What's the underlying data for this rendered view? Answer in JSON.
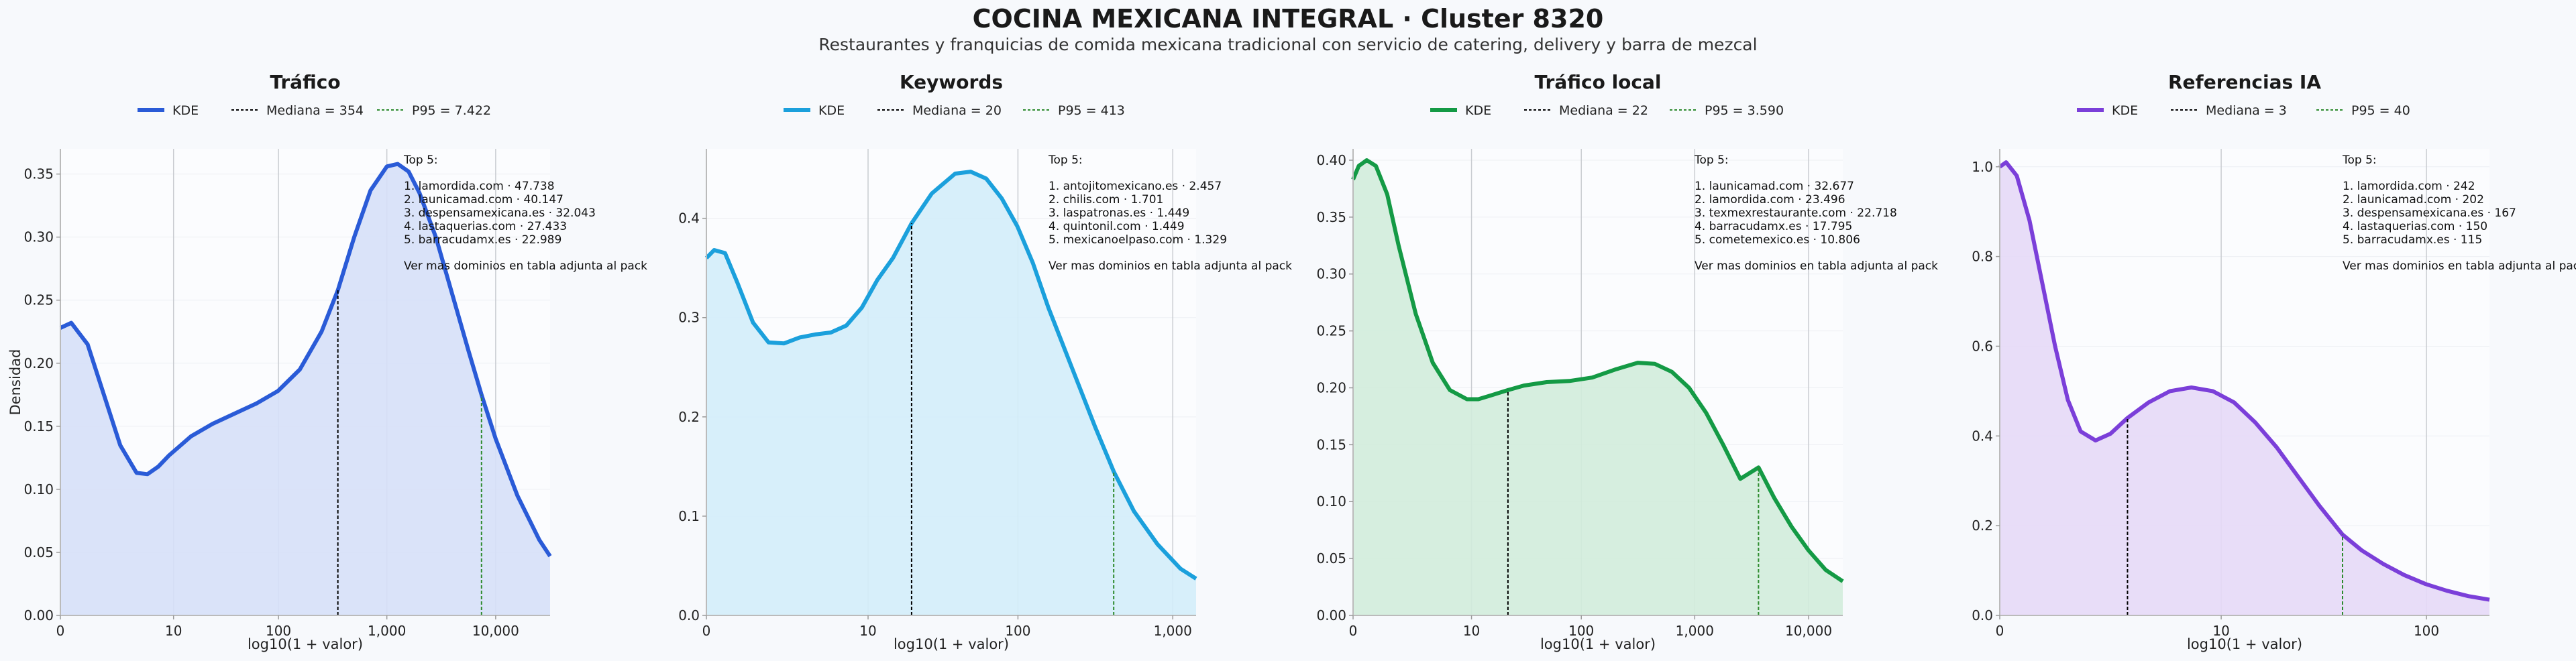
{
  "header": {
    "title": "COCINA MEXICANA INTEGRAL · Cluster 8320",
    "subtitle": "Restaurantes y franquicias de comida mexicana tradicional con servicio de catering, delivery y barra de mezcal"
  },
  "common": {
    "xlabel": "log10(1 + valor)",
    "ylabel": "Densidad",
    "legend_kde": "KDE",
    "note_header": "Top 5:",
    "note_footer": "Ver mas dominios en tabla adjunta al pack",
    "median_color": "#000000",
    "p95_color": "#2e8b2e"
  },
  "chart_data": [
    {
      "type": "area",
      "title": "Tráfico",
      "color": "#2a5bd7",
      "fill": "#d6e0f8",
      "xlim": [
        0,
        4.5
      ],
      "ylim": [
        0,
        0.37
      ],
      "yticks": [
        0,
        0.05,
        0.1,
        0.15,
        0.2,
        0.25,
        0.3,
        0.35
      ],
      "ytick_labels": [
        "0.00",
        "0.05",
        "0.10",
        "0.15",
        "0.20",
        "0.25",
        "0.30",
        "0.35"
      ],
      "xticks": [
        0,
        1.04,
        2.004,
        3.0,
        4.0
      ],
      "xtick_labels": [
        "0",
        "10",
        "100",
        "1,000",
        "10,000"
      ],
      "median": {
        "label": "Mediana = 354",
        "x": 2.55
      },
      "p95": {
        "label": "P95 = 7.422",
        "x": 3.87
      },
      "top5": [
        "1. lamordida.com · 47.738",
        "2. launicamad.com · 40.147",
        "3. despensamexicana.es · 32.043",
        "4. lastaquerias.com · 27.433",
        "5. barracudamx.es · 22.989"
      ],
      "x": [
        0,
        0.1,
        0.25,
        0.4,
        0.55,
        0.7,
        0.8,
        0.9,
        1.0,
        1.2,
        1.4,
        1.6,
        1.8,
        2.0,
        2.2,
        2.4,
        2.55,
        2.7,
        2.85,
        3.0,
        3.1,
        3.2,
        3.3,
        3.45,
        3.6,
        3.75,
        3.87,
        4.0,
        4.2,
        4.4,
        4.5
      ],
      "y": [
        0.228,
        0.232,
        0.215,
        0.175,
        0.135,
        0.113,
        0.112,
        0.118,
        0.127,
        0.142,
        0.152,
        0.16,
        0.168,
        0.178,
        0.195,
        0.225,
        0.258,
        0.3,
        0.337,
        0.356,
        0.358,
        0.352,
        0.335,
        0.3,
        0.255,
        0.21,
        0.175,
        0.14,
        0.095,
        0.06,
        0.047
      ]
    },
    {
      "type": "area",
      "title": "Keywords",
      "color": "#1ba0dc",
      "fill": "#d3edf9",
      "xlim": [
        0,
        3.15
      ],
      "ylim": [
        0,
        0.47
      ],
      "yticks": [
        0,
        0.1,
        0.2,
        0.3,
        0.4
      ],
      "ytick_labels": [
        "0.0",
        "0.1",
        "0.2",
        "0.3",
        "0.4"
      ],
      "xticks": [
        0,
        1.04,
        2.004,
        3.0
      ],
      "xtick_labels": [
        "0",
        "10",
        "100",
        "1,000"
      ],
      "median": {
        "label": "Mediana = 20",
        "x": 1.32
      },
      "p95": {
        "label": "P95 = 413",
        "x": 2.62
      },
      "top5": [
        "1. antojitomexicano.es · 2.457",
        "2. chilis.com · 1.701",
        "3. laspatronas.es · 1.449",
        "4. quintonil.com · 1.449",
        "5. mexicanoelpaso.com · 1.329"
      ],
      "x": [
        0,
        0.05,
        0.12,
        0.2,
        0.3,
        0.4,
        0.5,
        0.6,
        0.7,
        0.8,
        0.9,
        1.0,
        1.1,
        1.2,
        1.32,
        1.45,
        1.6,
        1.7,
        1.8,
        1.9,
        2.0,
        2.1,
        2.2,
        2.35,
        2.5,
        2.62,
        2.75,
        2.9,
        3.05,
        3.15
      ],
      "y": [
        0.36,
        0.368,
        0.365,
        0.335,
        0.295,
        0.275,
        0.274,
        0.28,
        0.283,
        0.285,
        0.292,
        0.31,
        0.338,
        0.36,
        0.395,
        0.425,
        0.445,
        0.447,
        0.44,
        0.42,
        0.392,
        0.355,
        0.31,
        0.25,
        0.19,
        0.145,
        0.105,
        0.072,
        0.047,
        0.037
      ]
    },
    {
      "type": "area",
      "title": "Tráfico local",
      "color": "#149a45",
      "fill": "#d2ecdb",
      "xlim": [
        0,
        4.3
      ],
      "ylim": [
        0,
        0.41
      ],
      "yticks": [
        0,
        0.05,
        0.1,
        0.15,
        0.2,
        0.25,
        0.3,
        0.35,
        0.4
      ],
      "ytick_labels": [
        "0.00",
        "0.05",
        "0.10",
        "0.15",
        "0.20",
        "0.25",
        "0.30",
        "0.35",
        "0.40"
      ],
      "xticks": [
        0,
        1.04,
        2.004,
        3.0,
        4.0
      ],
      "xtick_labels": [
        "0",
        "10",
        "100",
        "1,000",
        "10,000"
      ],
      "median": {
        "label": "Mediana = 22",
        "x": 1.36
      },
      "p95": {
        "label": "P95 = 3.590",
        "x": 3.56
      },
      "top5": [
        "1. launicamad.com · 32.677",
        "2. lamordida.com · 23.496",
        "3. texmexrestaurante.com · 22.718",
        "4. barracudamx.es · 17.795",
        "5. cometemexico.es · 10.806"
      ],
      "x": [
        0,
        0.05,
        0.12,
        0.2,
        0.3,
        0.4,
        0.55,
        0.7,
        0.85,
        1.0,
        1.1,
        1.2,
        1.36,
        1.5,
        1.7,
        1.9,
        2.1,
        2.3,
        2.5,
        2.65,
        2.8,
        2.95,
        3.1,
        3.25,
        3.4,
        3.56,
        3.7,
        3.85,
        4.0,
        4.15,
        4.3
      ],
      "y": [
        0.383,
        0.395,
        0.4,
        0.395,
        0.37,
        0.325,
        0.265,
        0.222,
        0.198,
        0.19,
        0.19,
        0.193,
        0.198,
        0.202,
        0.205,
        0.206,
        0.209,
        0.216,
        0.222,
        0.221,
        0.214,
        0.2,
        0.178,
        0.15,
        0.12,
        0.13,
        0.103,
        0.078,
        0.057,
        0.04,
        0.03
      ]
    },
    {
      "type": "area",
      "title": "Referencias IA",
      "color": "#7b3fd9",
      "fill": "#e5d9f7",
      "xlim": [
        0,
        2.3
      ],
      "ylim": [
        0,
        1.04
      ],
      "yticks": [
        0,
        0.2,
        0.4,
        0.6,
        0.8,
        1.0
      ],
      "ytick_labels": [
        "0.0",
        "0.2",
        "0.4",
        "0.6",
        "0.8",
        "1.0"
      ],
      "xticks": [
        0,
        1.04,
        2.004
      ],
      "xtick_labels": [
        "0",
        "10",
        "100"
      ],
      "median": {
        "label": "Mediana = 3",
        "x": 0.6
      },
      "p95": {
        "label": "P95 = 40",
        "x": 1.61
      },
      "top5": [
        "1. lamordida.com · 242",
        "2. launicamad.com · 202",
        "3. despensamexicana.es · 167",
        "4. lastaquerias.com · 150",
        "5. barracudamx.es · 115"
      ],
      "x": [
        0,
        0.03,
        0.08,
        0.14,
        0.2,
        0.26,
        0.32,
        0.38,
        0.45,
        0.52,
        0.6,
        0.7,
        0.8,
        0.9,
        1.0,
        1.1,
        1.2,
        1.3,
        1.4,
        1.5,
        1.61,
        1.7,
        1.8,
        1.9,
        2.0,
        2.1,
        2.2,
        2.3
      ],
      "y": [
        1.0,
        1.01,
        0.98,
        0.88,
        0.74,
        0.6,
        0.48,
        0.41,
        0.39,
        0.405,
        0.44,
        0.475,
        0.5,
        0.508,
        0.5,
        0.475,
        0.43,
        0.375,
        0.31,
        0.245,
        0.18,
        0.145,
        0.115,
        0.09,
        0.07,
        0.055,
        0.043,
        0.035
      ]
    }
  ]
}
